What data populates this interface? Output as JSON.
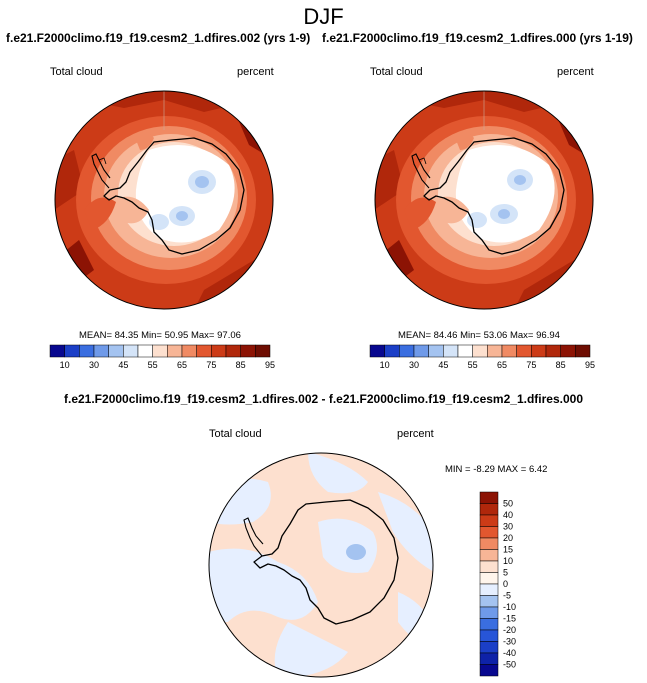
{
  "page_title": "DJF",
  "panels": [
    {
      "case_title": "f.e21.F2000climo.f19_f19.cesm2_1.dfires.002 (yrs 1-9)",
      "left_label": "Total cloud",
      "right_label": "percent",
      "mean_label": "MEAN=",
      "mean": "84.35",
      "min_label": "Min=",
      "min": "50.95",
      "max_label": "Max=",
      "max": "97.06"
    },
    {
      "case_title": "f.e21.F2000climo.f19_f19.cesm2_1.dfires.000 (yrs 1-19)",
      "left_label": "Total cloud",
      "right_label": "percent",
      "mean_label": "MEAN=",
      "mean": "84.46",
      "min_label": "Min=",
      "min": "53.06",
      "max_label": "Max=",
      "max": "96.94"
    }
  ],
  "diff": {
    "title": "f.e21.F2000climo.f19_f19.cesm2_1.dfires.002 - f.e21.F2000climo.f19_f19.cesm2_1.dfires.000",
    "left_label": "Total cloud",
    "right_label": "percent",
    "min_label": "MIN =",
    "min": "-8.29",
    "max_label": "MAX =",
    "max": "6.42"
  },
  "colorbar_main": {
    "colors": [
      "#08088f",
      "#1b3fc7",
      "#3a6ee0",
      "#6f9ae9",
      "#a4c3f0",
      "#d4e4f8",
      "#ffffff",
      "#fde0cf",
      "#f7b596",
      "#f08a63",
      "#e2572f",
      "#cc3b17",
      "#b0270b",
      "#8c1304",
      "#6e0d02"
    ],
    "tick_labels": [
      "10",
      "30",
      "45",
      "55",
      "65",
      "75",
      "85",
      "95"
    ]
  },
  "colorbar_diff": {
    "colors": [
      "#8c1304",
      "#b0270b",
      "#cc3b17",
      "#e2572f",
      "#f08a63",
      "#f7b596",
      "#fde0cf",
      "#fff5ec",
      "#e6efff",
      "#a4c3f0",
      "#6f9ae9",
      "#3a6ee0",
      "#2755d8",
      "#1b3fc7",
      "#0e22a8",
      "#08088f"
    ],
    "tick_labels": [
      "50",
      "40",
      "30",
      "20",
      "15",
      "10",
      "5",
      "0",
      "-5",
      "-10",
      "-15",
      "-20",
      "-30",
      "-40",
      "-50"
    ]
  }
}
